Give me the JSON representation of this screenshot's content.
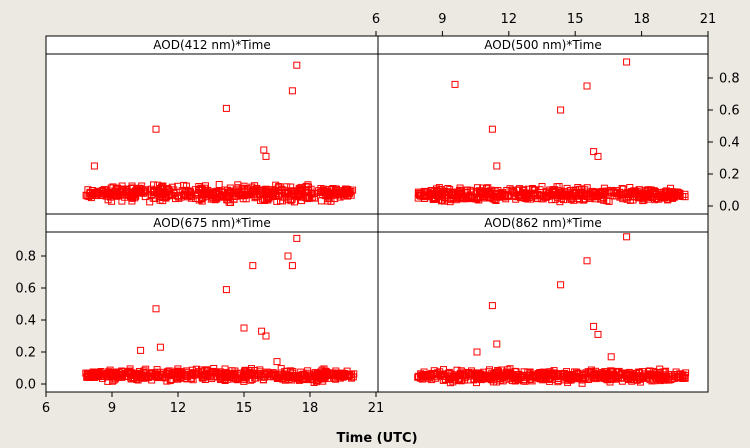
{
  "figure": {
    "xlabel": "Time (UTC)",
    "background": "#ECE9E2",
    "marker_color": "#FF0000"
  },
  "chart_data": [
    {
      "type": "scatter",
      "title": "AOD(412 nm)*Time",
      "xlim": [
        6,
        21
      ],
      "ylim": [
        -0.05,
        0.95
      ],
      "x_ticks": [
        6,
        9,
        12,
        15,
        18,
        21
      ],
      "y_ticks": [
        0.0,
        0.2,
        0.4,
        0.6,
        0.8
      ],
      "x_axis": "top",
      "y_axis": "none",
      "band_center": 0.08,
      "band_spread": 0.045,
      "points": [
        {
          "x": 8.2,
          "y": 0.25
        },
        {
          "x": 11.0,
          "y": 0.48
        },
        {
          "x": 14.2,
          "y": 0.61
        },
        {
          "x": 15.9,
          "y": 0.35
        },
        {
          "x": 16.0,
          "y": 0.31
        },
        {
          "x": 17.2,
          "y": 0.72
        },
        {
          "x": 17.4,
          "y": 0.88
        }
      ]
    },
    {
      "type": "scatter",
      "title": "AOD(500 nm)*Time",
      "xlim": [
        6,
        21
      ],
      "ylim": [
        -0.05,
        0.95
      ],
      "x_ticks": [
        6,
        9,
        12,
        15,
        18,
        21
      ],
      "y_ticks": [
        0.0,
        0.2,
        0.4,
        0.6,
        0.8
      ],
      "x_axis": "top",
      "y_axis": "right",
      "band_center": 0.07,
      "band_spread": 0.04,
      "points": [
        {
          "x": 9.5,
          "y": 0.76
        },
        {
          "x": 11.2,
          "y": 0.48
        },
        {
          "x": 11.4,
          "y": 0.25
        },
        {
          "x": 14.3,
          "y": 0.6
        },
        {
          "x": 15.5,
          "y": 0.75
        },
        {
          "x": 15.8,
          "y": 0.34
        },
        {
          "x": 16.0,
          "y": 0.31
        },
        {
          "x": 17.3,
          "y": 0.9
        }
      ]
    },
    {
      "type": "scatter",
      "title": "AOD(675 nm)*Time",
      "xlim": [
        6,
        21
      ],
      "ylim": [
        -0.05,
        0.95
      ],
      "x_ticks": [
        6,
        9,
        12,
        15,
        18,
        21
      ],
      "y_ticks": [
        0.0,
        0.2,
        0.4,
        0.6,
        0.8
      ],
      "x_axis": "bottom",
      "y_axis": "left",
      "band_center": 0.055,
      "band_spread": 0.035,
      "points": [
        {
          "x": 11.0,
          "y": 0.47
        },
        {
          "x": 11.2,
          "y": 0.23
        },
        {
          "x": 10.3,
          "y": 0.21
        },
        {
          "x": 14.2,
          "y": 0.59
        },
        {
          "x": 15.0,
          "y": 0.35
        },
        {
          "x": 15.4,
          "y": 0.74
        },
        {
          "x": 15.8,
          "y": 0.33
        },
        {
          "x": 16.0,
          "y": 0.3
        },
        {
          "x": 17.0,
          "y": 0.8
        },
        {
          "x": 17.2,
          "y": 0.74
        },
        {
          "x": 17.4,
          "y": 0.91
        },
        {
          "x": 16.5,
          "y": 0.14
        }
      ]
    },
    {
      "type": "scatter",
      "title": "AOD(862 nm)*Time",
      "xlim": [
        6,
        21
      ],
      "ylim": [
        -0.05,
        0.95
      ],
      "x_ticks": [
        6,
        9,
        12,
        15,
        18,
        21
      ],
      "y_ticks": [
        0.0,
        0.2,
        0.4,
        0.6,
        0.8
      ],
      "x_axis": "none",
      "y_axis": "none",
      "band_center": 0.05,
      "band_spread": 0.035,
      "points": [
        {
          "x": 11.2,
          "y": 0.49
        },
        {
          "x": 11.4,
          "y": 0.25
        },
        {
          "x": 10.5,
          "y": 0.2
        },
        {
          "x": 14.3,
          "y": 0.62
        },
        {
          "x": 15.5,
          "y": 0.77
        },
        {
          "x": 15.8,
          "y": 0.36
        },
        {
          "x": 16.0,
          "y": 0.31
        },
        {
          "x": 16.6,
          "y": 0.17
        },
        {
          "x": 17.3,
          "y": 0.92
        }
      ]
    }
  ]
}
